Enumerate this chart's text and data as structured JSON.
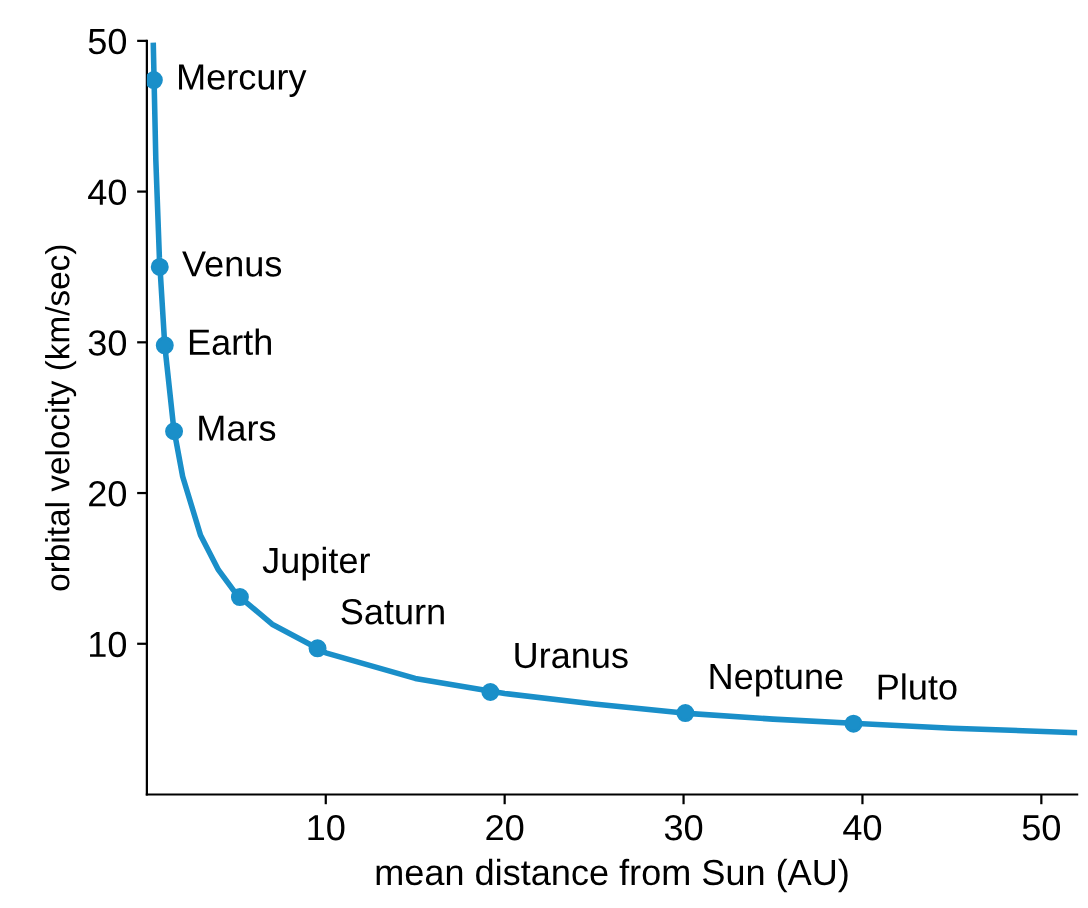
{
  "chart_data": {
    "type": "line",
    "xlabel": "mean distance from Sun (AU)",
    "ylabel": "orbital velocity (km/sec)",
    "xlim": [
      0,
      52
    ],
    "xticks": [
      10,
      20,
      30,
      40,
      50
    ],
    "ylim": [
      0,
      50
    ],
    "yticks": [
      10,
      20,
      30,
      40,
      50
    ],
    "grid": false,
    "series": [
      {
        "color": "#1a8fc9",
        "marker": "none",
        "x": [
          0.36,
          0.5,
          0.7,
          1,
          1.5,
          2,
          3,
          4,
          5,
          7,
          10,
          15,
          20,
          25,
          30,
          35,
          40,
          45,
          52
        ],
        "values": [
          49.7,
          42.1,
          35.6,
          29.8,
          24.3,
          21.1,
          17.2,
          14.9,
          13.3,
          11.3,
          9.4,
          7.7,
          6.7,
          6.0,
          5.4,
          5.0,
          4.7,
          4.4,
          4.1
        ]
      },
      {
        "type": "scatter",
        "color": "#1a8fc9",
        "marker": "circle",
        "x": [
          0.39,
          0.72,
          1,
          1.52,
          5.2,
          9.54,
          19.2,
          30.1,
          39.5
        ],
        "values": [
          47.4,
          35,
          29.8,
          24.1,
          13.1,
          9.7,
          6.8,
          5.4,
          4.7
        ]
      }
    ],
    "annotations": [
      {
        "text": "Mercury",
        "x": 0.39,
        "y": 47.4
      },
      {
        "text": "Venus",
        "x": 0.72,
        "y": 35
      },
      {
        "text": "Earth",
        "x": 1,
        "y": 29.8
      },
      {
        "text": "Mars",
        "x": 1.52,
        "y": 24.1
      },
      {
        "text": "Jupiter",
        "x": 5.2,
        "y": 13.1
      },
      {
        "text": "Saturn",
        "x": 9.54,
        "y": 9.7
      },
      {
        "text": "Uranus",
        "x": 19.2,
        "y": 6.8
      },
      {
        "text": "Neptune",
        "x": 30.1,
        "y": 5.4
      },
      {
        "text": "Pluto",
        "x": 39.5,
        "y": 4.7
      }
    ]
  }
}
